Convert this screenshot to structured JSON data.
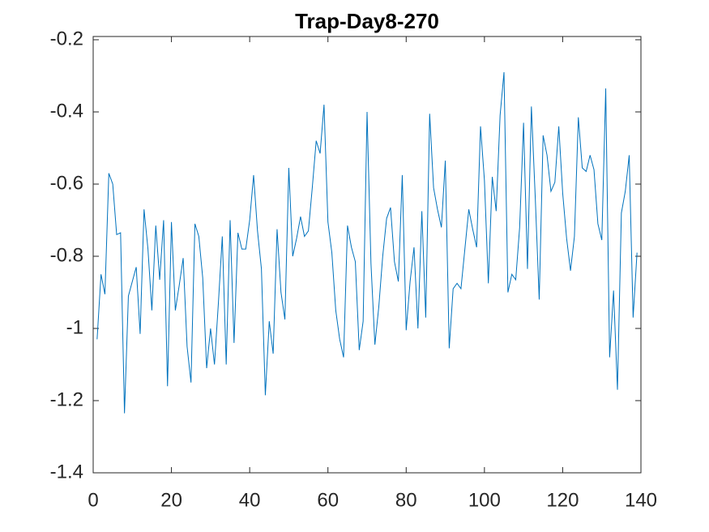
{
  "chart_data": {
    "type": "line",
    "title": "Trap-Day8-270",
    "x": [
      1,
      2,
      3,
      4,
      5,
      6,
      7,
      8,
      9,
      10,
      11,
      12,
      13,
      14,
      15,
      16,
      17,
      18,
      19,
      20,
      21,
      22,
      23,
      24,
      25,
      26,
      27,
      28,
      29,
      30,
      31,
      32,
      33,
      34,
      35,
      36,
      37,
      38,
      39,
      40,
      41,
      42,
      43,
      44,
      45,
      46,
      47,
      48,
      49,
      50,
      51,
      52,
      53,
      54,
      55,
      56,
      57,
      58,
      59,
      60,
      61,
      62,
      63,
      64,
      65,
      66,
      67,
      68,
      69,
      70,
      71,
      72,
      73,
      74,
      75,
      76,
      77,
      78,
      79,
      80,
      81,
      82,
      83,
      84,
      85,
      86,
      87,
      88,
      89,
      90,
      91,
      92,
      93,
      94,
      95,
      96,
      97,
      98,
      99,
      100,
      101,
      102,
      103,
      104,
      105,
      106,
      107,
      108,
      109,
      110,
      111,
      112,
      113,
      114,
      115,
      116,
      117,
      118,
      119,
      120,
      121,
      122,
      123,
      124,
      125,
      126,
      127,
      128,
      129,
      130,
      131,
      132,
      133,
      134,
      135,
      136,
      137,
      138,
      139
    ],
    "series": [
      {
        "color": "#0072bd",
        "values": [
          -1.03,
          -0.85,
          -0.905,
          -0.57,
          -0.6,
          -0.74,
          -0.735,
          -1.235,
          -0.91,
          -0.87,
          -0.83,
          -1.015,
          -0.67,
          -0.78,
          -0.95,
          -0.715,
          -0.865,
          -0.7,
          -1.16,
          -0.705,
          -0.95,
          -0.88,
          -0.805,
          -1.05,
          -1.15,
          -0.71,
          -0.745,
          -0.86,
          -1.11,
          -1.0,
          -1.1,
          -0.93,
          -0.745,
          -1.1,
          -0.7,
          -1.04,
          -0.735,
          -0.78,
          -0.78,
          -0.7,
          -0.575,
          -0.73,
          -0.835,
          -1.185,
          -0.98,
          -1.07,
          -0.725,
          -0.9,
          -0.975,
          -0.555,
          -0.8,
          -0.75,
          -0.69,
          -0.745,
          -0.73,
          -0.61,
          -0.48,
          -0.515,
          -0.38,
          -0.705,
          -0.79,
          -0.95,
          -1.03,
          -1.08,
          -0.715,
          -0.775,
          -0.815,
          -1.06,
          -0.98,
          -0.4,
          -0.82,
          -1.045,
          -0.94,
          -0.8,
          -0.695,
          -0.665,
          -0.815,
          -0.87,
          -0.575,
          -1.005,
          -0.87,
          -0.775,
          -1.0,
          -0.675,
          -0.97,
          -0.405,
          -0.61,
          -0.67,
          -0.72,
          -0.535,
          -1.055,
          -0.89,
          -0.875,
          -0.89,
          -0.78,
          -0.67,
          -0.725,
          -0.775,
          -0.44,
          -0.59,
          -0.875,
          -0.58,
          -0.675,
          -0.41,
          -0.29,
          -0.9,
          -0.85,
          -0.865,
          -0.72,
          -0.43,
          -0.835,
          -0.385,
          -0.64,
          -0.92,
          -0.465,
          -0.52,
          -0.62,
          -0.595,
          -0.44,
          -0.625,
          -0.75,
          -0.84,
          -0.745,
          -0.415,
          -0.555,
          -0.565,
          -0.52,
          -0.56,
          -0.71,
          -0.755,
          -0.335,
          -1.08,
          -0.895,
          -1.17,
          -0.68,
          -0.62,
          -0.52,
          -0.97,
          -0.79
        ]
      }
    ],
    "xlim": [
      0,
      140
    ],
    "xticks": [
      0,
      20,
      40,
      60,
      80,
      100,
      120,
      140
    ],
    "ylim": [
      -1.4,
      -0.2
    ],
    "yticks": [
      -1.4,
      -1.2,
      -1,
      -0.8,
      -0.6,
      -0.4,
      -0.2
    ]
  }
}
